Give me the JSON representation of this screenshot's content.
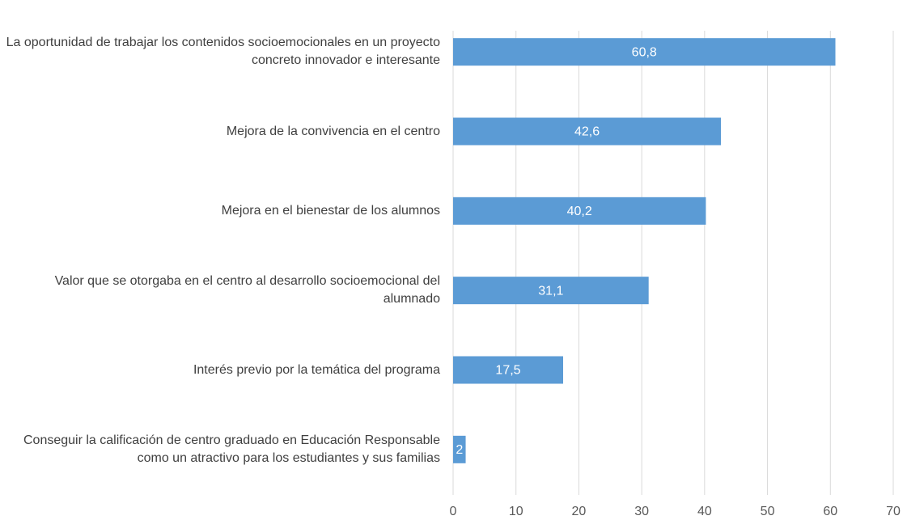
{
  "chart_data": {
    "type": "bar",
    "orientation": "horizontal",
    "categories": [
      "La oportunidad de trabajar los contenidos socioemocionales en un proyecto concreto innovador e interesante",
      "Mejora de la convivencia en el centro",
      "Mejora en el bienestar de los alumnos",
      "Valor que se otorgaba en el centro al desarrollo socioemocional del alumnado",
      "Interés previo por la temática del programa",
      "Conseguir la calificación de centro graduado en Educación Responsable como un atractivo para los estudiantes y sus familias"
    ],
    "values": [
      60.8,
      42.6,
      40.2,
      31.1,
      17.5,
      2
    ],
    "value_labels": [
      "60,8",
      "42,6",
      "40,2",
      "31,1",
      "17,5",
      "2"
    ],
    "color": "#5b9bd5",
    "xlim": [
      0,
      70
    ],
    "xticks": [
      0,
      10,
      20,
      30,
      40,
      50,
      60,
      70
    ],
    "grid": true
  }
}
